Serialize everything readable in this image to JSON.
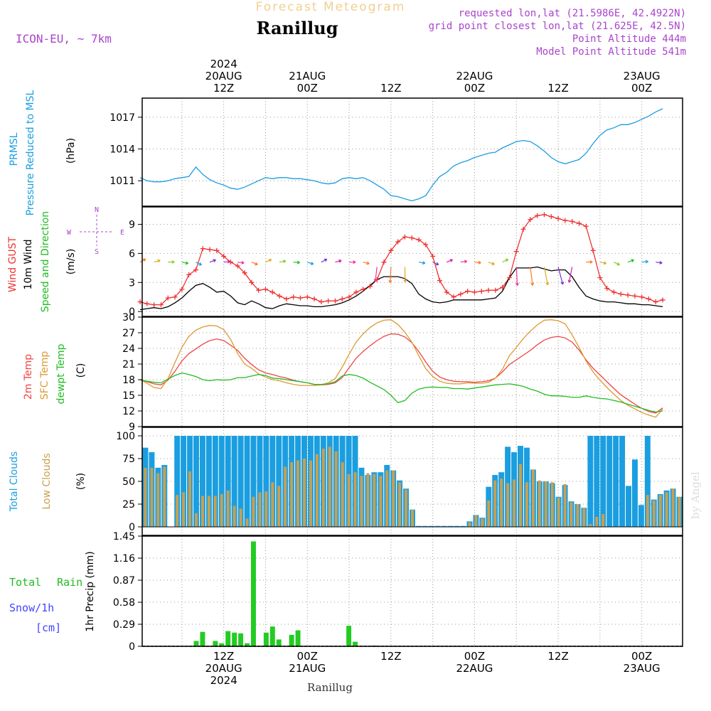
{
  "header": {
    "app_title": "Forecast Meteogram",
    "location": "Ranillug",
    "model": "ICON-EU, ~ 7km",
    "requested": "requested lon,lat (21.5986E, 42.4922N)",
    "grid_point": "grid point closest lon,lat (21.625E, 42.5N)",
    "point_altitude": "Point Altitude 444m",
    "model_altitude": "Model Point Altitude 541m",
    "footer_location": "Ranillug",
    "watermark": "by Angel"
  },
  "colors": {
    "pressure": "#1a9ee0",
    "gust": "#ee3333",
    "wind": "#000000",
    "direction": "#22bb22",
    "temp2m": "#ee4444",
    "sfc": "#dd9933",
    "dewpt": "#22bb22",
    "total_cloud": "#1a9ee0",
    "low_cloud": "#c8a050",
    "rain": "#22cc22",
    "snow": "#4444ff",
    "meta": "#aa44cc"
  },
  "time_axis": {
    "top_labels": [
      {
        "h": 12,
        "lines": [
          "2024",
          "20AUG",
          "12Z"
        ]
      },
      {
        "h": 24,
        "lines": [
          "21AUG",
          "00Z"
        ]
      },
      {
        "h": 36,
        "lines": [
          "12Z"
        ]
      },
      {
        "h": 48,
        "lines": [
          "22AUG",
          "00Z"
        ]
      },
      {
        "h": 60,
        "lines": [
          "12Z"
        ]
      },
      {
        "h": 72,
        "lines": [
          "23AUG",
          "00Z"
        ]
      }
    ],
    "bottom_labels": [
      {
        "h": 12,
        "lines": [
          "12Z",
          "20AUG",
          "2024"
        ]
      },
      {
        "h": 24,
        "lines": [
          "00Z",
          "21AUG"
        ]
      },
      {
        "h": 36,
        "lines": [
          "12Z"
        ]
      },
      {
        "h": 48,
        "lines": [
          "00Z",
          "22AUG"
        ]
      },
      {
        "h": 60,
        "lines": [
          "12Z"
        ]
      },
      {
        "h": 72,
        "lines": [
          "00Z",
          "23AUG"
        ]
      }
    ]
  },
  "chart_data": [
    {
      "type": "line",
      "panel": "pressure",
      "ylabel_lines": [
        "PRMSL",
        "Pressure Reduced to MSL"
      ],
      "unit": "(hPa)",
      "yticks": [
        1011,
        1014,
        1017
      ],
      "ylim": [
        1008.6,
        1018.8
      ],
      "series": [
        {
          "values": [
            1011.3,
            1011.0,
            1010.9,
            1010.9,
            1011.0,
            1011.2,
            1011.3,
            1011.4,
            1012.3,
            1011.6,
            1011.1,
            1010.8,
            1010.6,
            1010.3,
            1010.2,
            1010.4,
            1010.7,
            1011.0,
            1011.3,
            1011.2,
            1011.3,
            1011.3,
            1011.2,
            1011.2,
            1011.1,
            1011.0,
            1010.8,
            1010.7,
            1010.8,
            1011.2,
            1011.3,
            1011.2,
            1011.3,
            1011.0,
            1010.6,
            1010.2,
            1009.6,
            1009.5,
            1009.3,
            1009.1,
            1009.3,
            1009.6,
            1010.6,
            1011.4,
            1011.8,
            1012.4,
            1012.7,
            1012.9,
            1013.2,
            1013.4,
            1013.6,
            1013.7,
            1014.1,
            1014.4,
            1014.7,
            1014.8,
            1014.7,
            1014.3,
            1013.8,
            1013.2,
            1012.8,
            1012.6,
            1012.8,
            1013.0,
            1013.6,
            1014.5,
            1015.3,
            1015.8,
            1016.0,
            1016.3,
            1016.3,
            1016.5,
            1016.8,
            1017.1,
            1017.5,
            1017.8
          ]
        }
      ]
    },
    {
      "type": "line",
      "panel": "wind",
      "ylabel_lines": [
        "Wind GUST",
        "10m Wind",
        "Speed and Direction"
      ],
      "unit": "(m/s)",
      "compass": {
        "n": "N",
        "s": "S",
        "w": "W",
        "e": "E"
      },
      "yticks": [
        0,
        3,
        6,
        9
      ],
      "ylim": [
        -0.5,
        10.8
      ],
      "series": [
        {
          "key": "gust",
          "values": [
            1.0,
            0.8,
            0.7,
            0.7,
            1.4,
            1.5,
            2.3,
            3.8,
            4.3,
            6.5,
            6.4,
            6.3,
            5.7,
            5.1,
            4.7,
            4.0,
            3.0,
            2.2,
            2.3,
            2.0,
            1.6,
            1.3,
            1.5,
            1.4,
            1.5,
            1.3,
            1.0,
            1.1,
            1.1,
            1.3,
            1.5,
            2.0,
            2.3,
            2.6,
            3.3,
            5.1,
            6.3,
            7.2,
            7.7,
            7.6,
            7.4,
            6.9,
            5.7,
            3.2,
            2.0,
            1.5,
            1.8,
            2.1,
            2.0,
            2.1,
            2.2,
            2.2,
            2.5,
            3.5,
            6.2,
            8.5,
            9.5,
            9.9,
            10.0,
            9.8,
            9.6,
            9.4,
            9.3,
            9.1,
            8.8,
            6.3,
            3.5,
            2.4,
            2.0,
            1.8,
            1.7,
            1.6,
            1.5,
            1.3,
            1.0,
            1.2
          ]
        },
        {
          "key": "wind",
          "values": [
            0.2,
            0.3,
            0.4,
            0.3,
            0.5,
            0.9,
            1.4,
            2.1,
            2.7,
            2.9,
            2.5,
            2.0,
            2.1,
            1.6,
            0.9,
            0.7,
            1.1,
            0.8,
            0.4,
            0.3,
            0.6,
            0.8,
            0.7,
            0.6,
            0.6,
            0.5,
            0.5,
            0.6,
            0.7,
            0.9,
            1.2,
            1.6,
            2.1,
            2.7,
            3.3,
            3.6,
            3.6,
            3.6,
            3.4,
            2.9,
            1.8,
            1.3,
            1.0,
            0.9,
            1.0,
            1.2,
            1.2,
            1.2,
            1.2,
            1.2,
            1.3,
            1.4,
            2.1,
            3.5,
            4.5,
            4.5,
            4.5,
            4.6,
            4.4,
            4.2,
            4.3,
            4.3,
            3.6,
            2.5,
            1.6,
            1.3,
            1.1,
            1.0,
            1.0,
            0.9,
            0.8,
            0.8,
            0.7,
            0.7,
            0.6,
            0.5
          ]
        }
      ],
      "direction_colors": [
        "#7733cc",
        "#cc22aa",
        "#ee3399",
        "#ff7722",
        "#ddaa22",
        "#88cc22",
        "#22bb22",
        "#1a9ee0"
      ]
    },
    {
      "type": "line",
      "panel": "temperature",
      "ylabel_lines": [
        "2m Temp",
        "SFC Temp",
        "dewpt Temp"
      ],
      "unit": "(C)",
      "yticks": [
        9,
        12,
        15,
        18,
        21,
        24,
        27,
        30
      ],
      "ylim": [
        9,
        30
      ],
      "series": [
        {
          "key": "t2m",
          "values": [
            18.0,
            17.6,
            17.2,
            17.0,
            17.9,
            19.6,
            21.6,
            23.0,
            23.9,
            24.8,
            25.5,
            25.8,
            25.5,
            24.6,
            23.6,
            22.1,
            20.9,
            19.9,
            19.3,
            19.0,
            18.6,
            18.3,
            17.9,
            17.6,
            17.4,
            17.1,
            17.0,
            17.1,
            17.4,
            18.4,
            20.3,
            22.1,
            23.4,
            24.5,
            25.5,
            26.3,
            26.8,
            26.7,
            26.2,
            25.1,
            23.4,
            21.4,
            19.6,
            18.5,
            18.0,
            17.7,
            17.6,
            17.6,
            17.5,
            17.6,
            17.8,
            18.3,
            19.5,
            20.9,
            21.8,
            22.7,
            23.6,
            24.7,
            25.6,
            26.1,
            26.3,
            26.0,
            25.2,
            23.7,
            21.8,
            20.2,
            18.9,
            17.6,
            16.3,
            15.1,
            14.2,
            13.3,
            12.5,
            11.9,
            11.6,
            12.6
          ]
        },
        {
          "key": "sfc",
          "values": [
            18.0,
            17.3,
            16.5,
            16.3,
            18.2,
            21.3,
            24.2,
            26.3,
            27.5,
            28.1,
            28.4,
            28.3,
            27.6,
            25.7,
            23.0,
            21.0,
            20.2,
            19.1,
            18.5,
            18.0,
            17.8,
            17.4,
            17.1,
            16.9,
            16.9,
            16.9,
            17.0,
            17.4,
            18.2,
            20.4,
            22.9,
            25.2,
            26.8,
            28.0,
            28.9,
            29.4,
            29.5,
            28.6,
            27.1,
            25.2,
            22.6,
            20.1,
            18.6,
            17.7,
            17.3,
            17.2,
            17.2,
            17.4,
            17.3,
            17.3,
            17.5,
            18.3,
            20.0,
            22.6,
            24.2,
            25.9,
            27.3,
            28.5,
            29.4,
            29.5,
            29.3,
            28.7,
            26.6,
            24.2,
            21.6,
            19.5,
            17.9,
            16.5,
            15.2,
            14.0,
            13.1,
            12.4,
            11.7,
            11.2,
            10.8,
            12.4
          ]
        },
        {
          "key": "dewpt",
          "values": [
            18.0,
            17.7,
            17.5,
            17.4,
            18.1,
            18.8,
            19.3,
            19.0,
            18.6,
            18.0,
            17.8,
            18.0,
            17.9,
            18.0,
            18.4,
            18.4,
            18.7,
            19.0,
            18.8,
            18.3,
            18.2,
            18.0,
            17.8,
            17.6,
            17.4,
            17.1,
            17.1,
            17.2,
            17.6,
            18.7,
            19.0,
            18.8,
            18.3,
            17.5,
            16.8,
            16.1,
            15.0,
            13.6,
            14.0,
            15.4,
            16.2,
            16.5,
            16.6,
            16.5,
            16.5,
            16.3,
            16.3,
            16.2,
            16.4,
            16.6,
            16.8,
            17.0,
            17.1,
            17.2,
            17.0,
            16.7,
            16.2,
            15.8,
            15.2,
            14.9,
            14.9,
            14.8,
            14.6,
            14.6,
            14.9,
            14.6,
            14.4,
            14.3,
            14.0,
            13.7,
            13.3,
            12.9,
            12.5,
            12.1,
            11.8,
            12.0
          ]
        }
      ]
    },
    {
      "type": "bar",
      "panel": "clouds",
      "ylabel_lines": [
        "Total Clouds",
        "Low Clouds"
      ],
      "unit": "(%)",
      "yticks": [
        0,
        25,
        50,
        75,
        100
      ],
      "ylim": [
        0,
        100
      ],
      "series": [
        {
          "key": "total",
          "values": [
            87,
            82,
            65,
            68,
            0,
            100,
            100,
            100,
            100,
            100,
            100,
            100,
            100,
            100,
            100,
            100,
            100,
            100,
            100,
            100,
            100,
            100,
            100,
            100,
            100,
            100,
            100,
            100,
            100,
            100,
            100,
            100,
            100,
            100,
            65,
            57,
            60,
            60,
            68,
            62,
            51,
            42,
            19,
            1,
            1,
            1,
            1,
            1,
            1,
            1,
            1,
            6,
            13,
            10,
            44,
            57,
            60,
            88,
            82,
            89,
            87,
            63,
            50,
            50,
            48,
            33,
            46,
            28,
            25,
            21,
            100,
            100,
            100,
            100,
            100,
            100,
            45,
            74,
            24,
            100,
            30,
            36,
            40,
            42,
            33
          ]
        },
        {
          "key": "low",
          "values": [
            65,
            65,
            59,
            66,
            0,
            35,
            38,
            61,
            15,
            34,
            34,
            34,
            36,
            40,
            23,
            20,
            9,
            33,
            38,
            39,
            49,
            45,
            66,
            71,
            73,
            75,
            73,
            80,
            86,
            88,
            83,
            71,
            58,
            60,
            56,
            59,
            58,
            56,
            62,
            62,
            49,
            41,
            19,
            0,
            0,
            0,
            0,
            0,
            0,
            0,
            0,
            5,
            13,
            9,
            29,
            51,
            53,
            48,
            52,
            69,
            49,
            63,
            51,
            50,
            49,
            32,
            47,
            27,
            25,
            21,
            3,
            11,
            14,
            0,
            0,
            0,
            0,
            0,
            0,
            35,
            29,
            35,
            38,
            42,
            33
          ]
        }
      ]
    },
    {
      "type": "bar",
      "panel": "precip",
      "legend": {
        "rain_1": "Total",
        "rain_2": "Rain",
        "snow": "Snow/1h",
        "snow_unit": "[cm]"
      },
      "ylabel_lines": [
        "1hr Precip (mm)"
      ],
      "yticks": [
        "0",
        "0.29",
        "0.58",
        "0.87",
        "1.16",
        "1.45"
      ],
      "ylim": [
        0,
        1.45
      ],
      "series": [
        {
          "key": "rain",
          "values": [
            0,
            0,
            0,
            0,
            0,
            0,
            0,
            0,
            0.07,
            0.19,
            0,
            0.07,
            0.04,
            0.2,
            0.18,
            0.17,
            0.04,
            1.38,
            0,
            0.18,
            0.26,
            0.09,
            0,
            0.15,
            0.21,
            0,
            0,
            0,
            0,
            0,
            0,
            0,
            0.27,
            0.06,
            0,
            0,
            0.01,
            0,
            0,
            0,
            0,
            0,
            0,
            0,
            0,
            0,
            0,
            0,
            0,
            0,
            0,
            0,
            0,
            0,
            0,
            0,
            0,
            0,
            0,
            0,
            0,
            0,
            0,
            0,
            0,
            0,
            0,
            0,
            0,
            0,
            0,
            0,
            0,
            0,
            0,
            0,
            0,
            0,
            0,
            0,
            0,
            0,
            0,
            0,
            0
          ]
        }
      ]
    }
  ]
}
